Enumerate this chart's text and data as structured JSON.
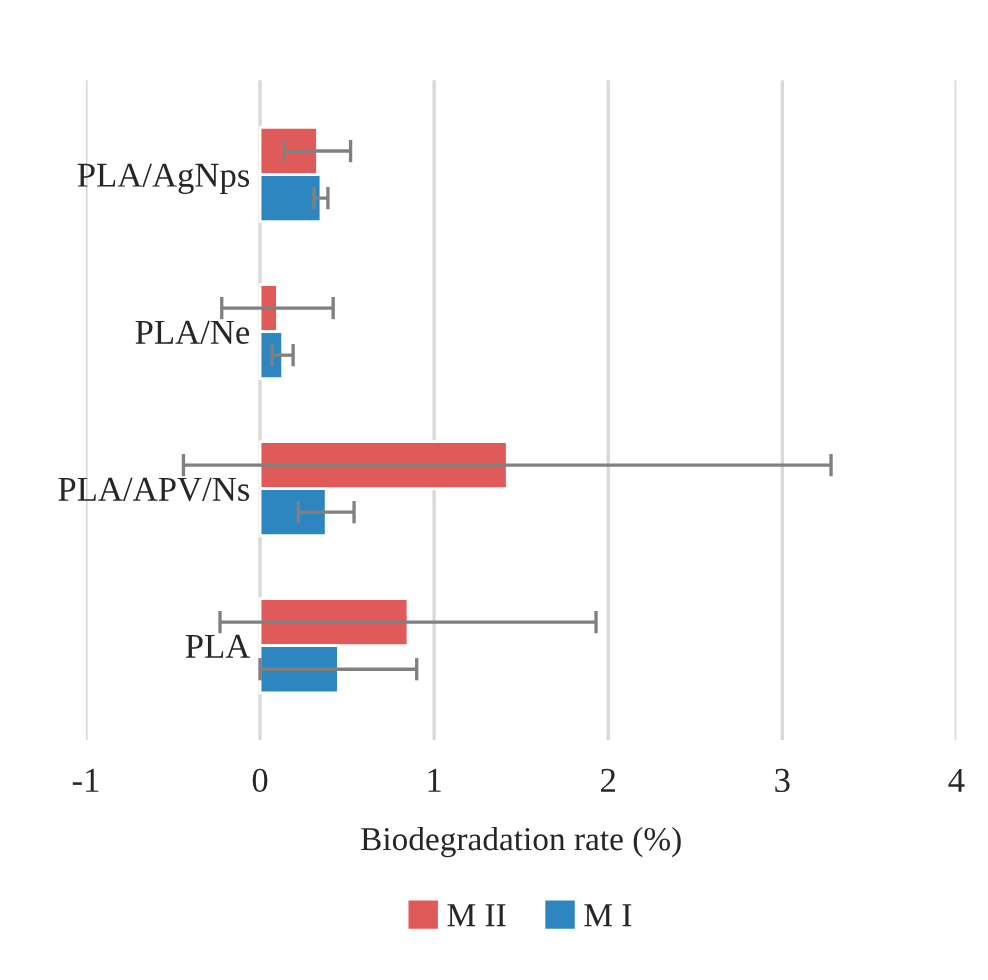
{
  "chart_data": {
    "type": "bar",
    "orientation": "horizontal",
    "xlabel": "Biodegradation rate (%)",
    "categories": [
      "PLA/AgNps",
      "PLA/Ne",
      "PLA/APV/Ns",
      "PLA"
    ],
    "series": [
      {
        "name": "M II",
        "color": "#e05a5a",
        "values": [
          0.33,
          0.1,
          1.42,
          0.85
        ],
        "errors": [
          0.19,
          0.32,
          1.86,
          1.08
        ]
      },
      {
        "name": "M I",
        "color": "#2e86c1",
        "values": [
          0.35,
          0.13,
          0.38,
          0.45
        ],
        "errors": [
          0.04,
          0.06,
          0.16,
          0.45
        ]
      }
    ],
    "xlim": [
      -1,
      4
    ],
    "xticks": [
      -1,
      0,
      1,
      2,
      3,
      4
    ],
    "grid": "x",
    "legend": "bottom"
  }
}
